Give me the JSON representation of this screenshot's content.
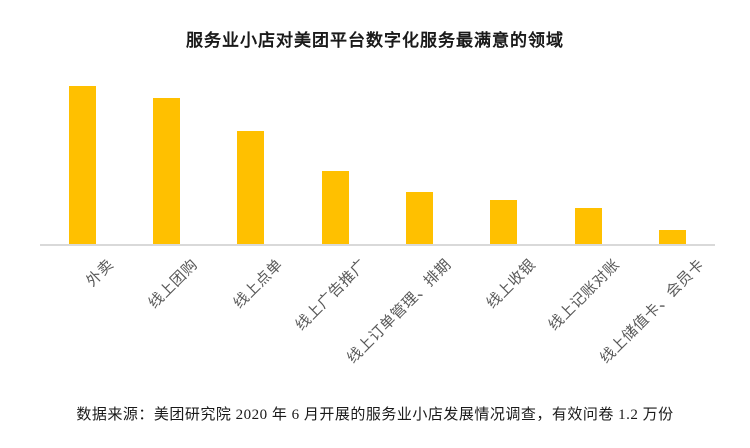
{
  "page": {
    "background_color": "#ffffff"
  },
  "chart_data": {
    "type": "bar",
    "title": "服务业小店对美团平台数字化服务最满意的领域",
    "categories": [
      "外卖",
      "线上团购",
      "线上点单",
      "线上广告推广",
      "线上订单管理、排期",
      "线上收银",
      "线上记账对账",
      "线上储值卡、会员卡"
    ],
    "values": [
      100,
      92,
      71,
      46,
      33,
      28,
      23,
      9
    ],
    "value_units": "relative height, max bar = 100 (no value axis, gridlines or data labels shown in chart)",
    "xlabel": "",
    "ylabel": "",
    "ylim": [
      0,
      100
    ],
    "grid": false,
    "legend": false,
    "x_tick_rotation_deg": 45,
    "bar_color": "#FFC000",
    "axis_line_color": "#D9D9D9",
    "tick_label_color": "#595959",
    "title_color": "#1A1A1A"
  },
  "source_note": "数据来源：美团研究院 2020 年 6 月开展的服务业小店发展情况调查，有效问卷 1.2 万份"
}
